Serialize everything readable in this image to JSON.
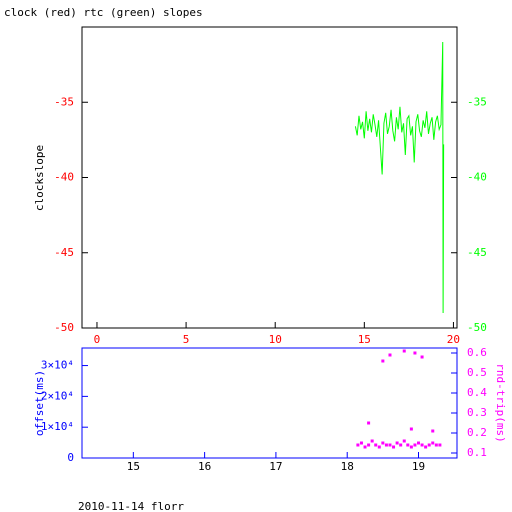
{
  "chart_data": [
    {
      "type": "line",
      "title": "clock (red) rtc (green) slopes",
      "y_label": "clockslope",
      "xlim": [
        -0.84,
        20.2
      ],
      "xticks": [
        0,
        5,
        10,
        15,
        20
      ],
      "ylim": [
        -50,
        -30
      ],
      "yticks": [
        -35,
        -40,
        -45,
        -50
      ],
      "y2lim": [
        -50,
        -30
      ],
      "y2ticks": [
        -35,
        -40,
        -45,
        -50
      ],
      "series": [
        {
          "color": "#00ff00",
          "x": [
            14.5,
            14.6,
            14.7,
            14.8,
            14.9,
            15.0,
            15.1,
            15.2,
            15.3,
            15.4,
            15.5,
            15.6,
            15.7,
            15.8,
            15.9,
            16.0,
            16.1,
            16.2,
            16.3,
            16.4,
            16.5,
            16.6,
            16.7,
            16.8,
            16.9,
            17.0,
            17.1,
            17.2,
            17.3,
            17.4,
            17.5,
            17.6,
            17.7,
            17.8,
            17.9,
            18.0,
            18.1,
            18.2,
            18.3,
            18.4,
            18.5,
            18.6,
            18.7,
            18.8,
            18.9,
            19.0,
            19.1,
            19.2,
            19.3,
            19.4,
            19.42,
            19.45
          ],
          "values": [
            -36.6,
            -37.2,
            -35.9,
            -36.8,
            -36.3,
            -37.4,
            -35.6,
            -36.9,
            -36.1,
            -37.0,
            -35.8,
            -36.5,
            -37.3,
            -36.2,
            -38.0,
            -39.8,
            -36.4,
            -35.7,
            -37.1,
            -36.6,
            -35.5,
            -36.9,
            -37.6,
            -36.0,
            -36.8,
            -35.3,
            -37.0,
            -36.4,
            -38.5,
            -36.1,
            -35.9,
            -37.2,
            -36.6,
            -39.0,
            -36.3,
            -35.8,
            -36.9,
            -37.3,
            -36.2,
            -36.7,
            -35.6,
            -37.1,
            -36.4,
            -36.0,
            -37.5,
            -36.3,
            -35.9,
            -36.8,
            -36.5,
            -31.0,
            -49.0,
            -37.8
          ]
        }
      ]
    },
    {
      "type": "scatter",
      "y_label": "offset(ms)",
      "y2_label": "rnd-trip(ms)",
      "footer": "2010-11-14 florr",
      "xlim": [
        14.28,
        19.54
      ],
      "xticks": [
        15,
        16,
        17,
        18,
        19
      ],
      "ylim": [
        0,
        35700
      ],
      "yticks": [
        0,
        {
          "value": 10000,
          "label": "1×10⁴"
        },
        {
          "value": 20000,
          "label": "2×10⁴"
        },
        {
          "value": 30000,
          "label": "3×10⁴"
        }
      ],
      "y2lim": [
        0.075,
        0.625
      ],
      "y2ticks": [
        0.1,
        0.2,
        0.3,
        0.4,
        0.5,
        0.6
      ],
      "series": [
        {
          "color": "#ff00ff",
          "axis": "y2",
          "x": [
            18.15,
            18.2,
            18.25,
            18.3,
            18.35,
            18.4,
            18.45,
            18.5,
            18.55,
            18.6,
            18.65,
            18.7,
            18.75,
            18.8,
            18.85,
            18.9,
            18.95,
            19.0,
            19.05,
            19.1,
            19.15,
            19.2,
            19.25,
            19.3,
            18.5,
            18.6,
            18.8,
            18.95,
            19.05,
            18.3,
            18.9,
            19.2
          ],
          "values": [
            0.14,
            0.15,
            0.13,
            0.14,
            0.16,
            0.14,
            0.13,
            0.15,
            0.14,
            0.14,
            0.13,
            0.15,
            0.14,
            0.16,
            0.14,
            0.13,
            0.14,
            0.15,
            0.14,
            0.13,
            0.14,
            0.15,
            0.14,
            0.14,
            0.56,
            0.59,
            0.61,
            0.6,
            0.58,
            0.25,
            0.22,
            0.21
          ]
        }
      ]
    }
  ]
}
